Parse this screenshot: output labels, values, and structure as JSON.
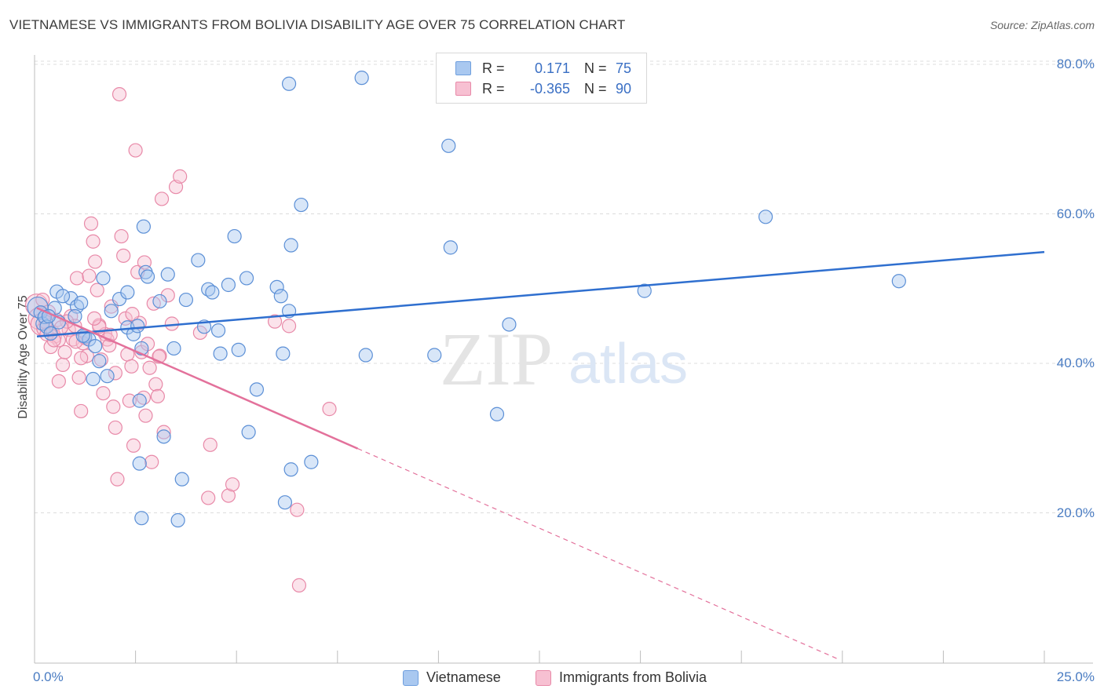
{
  "title": "VIETNAMESE VS IMMIGRANTS FROM BOLIVIA DISABILITY AGE OVER 75 CORRELATION CHART",
  "source": "Source: ZipAtlas.com",
  "watermark": {
    "zip": "ZIP",
    "atlas": "atlas"
  },
  "legend": {
    "rows": [
      {
        "r_label": "R =",
        "r_value": "0.171",
        "n_label": "N =",
        "n_value": "75",
        "color": "#a9c8f0",
        "border": "#6f9fde"
      },
      {
        "r_label": "R =",
        "r_value": "-0.365",
        "n_label": "N =",
        "n_value": "90",
        "color": "#f7c0d2",
        "border": "#e889a8"
      }
    ]
  },
  "bottom_legend": [
    "Vietnamese",
    "Immigrants from Bolivia"
  ],
  "colors": {
    "blue_fill": "#a9c8f0",
    "blue_stroke": "#5b8fd6",
    "blue_line": "#2f6fcf",
    "pink_fill": "#f7c0d2",
    "pink_stroke": "#e889a8",
    "pink_line": "#e3719b"
  },
  "chart_data": {
    "type": "scatter",
    "title": "VIETNAMESE VS IMMIGRANTS FROM BOLIVIA DISABILITY AGE OVER 75 CORRELATION CHART",
    "xlabel": "",
    "ylabel": "Disability Age Over 75",
    "xlim": [
      0,
      25
    ],
    "ylim": [
      0,
      84
    ],
    "x_tick_labels": [
      "0.0%",
      "25.0%"
    ],
    "y_ticks": [
      20,
      40,
      60,
      80
    ],
    "y_tick_labels": [
      "20.0%",
      "40.0%",
      "60.0%",
      "80.0%"
    ],
    "grid": "horizontal dashed",
    "legend_position": "top-center",
    "series": [
      {
        "name": "Vietnamese",
        "r": 0.171,
        "n": 75,
        "trend": {
          "x": [
            0,
            25
          ],
          "y": [
            43.6,
            54.9
          ]
        },
        "points": [
          [
            0.08,
            47.5
          ],
          [
            0.15,
            46.8
          ],
          [
            0.2,
            45.3
          ],
          [
            0.25,
            46.2
          ],
          [
            0.3,
            44.9
          ],
          [
            0.4,
            44.0
          ],
          [
            0.5,
            47.4
          ],
          [
            0.6,
            45.5
          ],
          [
            0.55,
            49.6
          ],
          [
            0.9,
            48.7
          ],
          [
            1.05,
            47.6
          ],
          [
            1.15,
            48.1
          ],
          [
            1.25,
            43.6
          ],
          [
            1.35,
            43.2
          ],
          [
            1.5,
            42.3
          ],
          [
            1.6,
            40.3
          ],
          [
            1.45,
            37.9
          ],
          [
            1.8,
            38.3
          ],
          [
            1.9,
            47.0
          ],
          [
            2.1,
            48.6
          ],
          [
            2.3,
            44.8
          ],
          [
            2.45,
            43.9
          ],
          [
            2.55,
            45.0
          ],
          [
            2.65,
            42.0
          ],
          [
            2.7,
            58.3
          ],
          [
            2.75,
            52.2
          ],
          [
            2.8,
            51.6
          ],
          [
            2.6,
            35.0
          ],
          [
            3.1,
            48.3
          ],
          [
            3.3,
            51.9
          ],
          [
            3.45,
            42.0
          ],
          [
            3.65,
            24.5
          ],
          [
            3.75,
            48.5
          ],
          [
            4.05,
            53.8
          ],
          [
            4.2,
            44.9
          ],
          [
            4.3,
            49.9
          ],
          [
            4.4,
            49.5
          ],
          [
            4.55,
            44.4
          ],
          [
            4.6,
            41.3
          ],
          [
            4.8,
            50.5
          ],
          [
            4.95,
            57.0
          ],
          [
            5.05,
            41.8
          ],
          [
            5.25,
            51.4
          ],
          [
            5.3,
            30.8
          ],
          [
            5.5,
            36.5
          ],
          [
            6.0,
            50.2
          ],
          [
            6.1,
            49.0
          ],
          [
            6.15,
            41.3
          ],
          [
            6.3,
            47.0
          ],
          [
            6.35,
            55.8
          ],
          [
            6.6,
            61.2
          ],
          [
            6.85,
            26.8
          ],
          [
            6.3,
            77.4
          ],
          [
            8.1,
            78.2
          ],
          [
            8.2,
            41.1
          ],
          [
            9.9,
            41.1
          ],
          [
            10.25,
            69.1
          ],
          [
            10.3,
            55.5
          ],
          [
            11.45,
            33.2
          ],
          [
            11.75,
            45.2
          ],
          [
            15.1,
            49.7
          ],
          [
            18.1,
            59.6
          ],
          [
            21.4,
            51.0
          ],
          [
            3.2,
            30.2
          ],
          [
            2.6,
            26.6
          ],
          [
            3.55,
            19.0
          ],
          [
            6.35,
            25.8
          ],
          [
            6.2,
            21.4
          ],
          [
            2.65,
            19.3
          ],
          [
            0.7,
            49.0
          ],
          [
            1.0,
            46.3
          ],
          [
            1.7,
            51.4
          ],
          [
            2.3,
            49.5
          ],
          [
            1.2,
            43.7
          ],
          [
            0.35,
            46.3
          ]
        ]
      },
      {
        "name": "Immigrants from Bolivia",
        "r": -0.365,
        "n": 90,
        "trend": {
          "x": [
            0,
            8
          ],
          "y": [
            47.4,
            28.6
          ],
          "dashed_to": [
            25,
            0
          ]
        },
        "points": [
          [
            0.05,
            47.8
          ],
          [
            0.12,
            46.0
          ],
          [
            0.18,
            45.2
          ],
          [
            0.22,
            44.6
          ],
          [
            0.3,
            43.9
          ],
          [
            0.35,
            46.9
          ],
          [
            0.45,
            44.2
          ],
          [
            0.5,
            43.6
          ],
          [
            0.55,
            45.8
          ],
          [
            0.6,
            43.1
          ],
          [
            0.7,
            39.8
          ],
          [
            0.75,
            41.5
          ],
          [
            0.6,
            37.6
          ],
          [
            0.85,
            44.5
          ],
          [
            0.9,
            46.3
          ],
          [
            0.95,
            43.2
          ],
          [
            1.0,
            45.0
          ],
          [
            1.05,
            51.4
          ],
          [
            1.1,
            38.1
          ],
          [
            1.15,
            33.6
          ],
          [
            1.2,
            42.7
          ],
          [
            1.25,
            43.4
          ],
          [
            1.3,
            41.0
          ],
          [
            1.35,
            51.7
          ],
          [
            1.4,
            58.7
          ],
          [
            1.45,
            56.3
          ],
          [
            1.5,
            53.6
          ],
          [
            1.55,
            49.8
          ],
          [
            1.6,
            45.1
          ],
          [
            1.65,
            40.5
          ],
          [
            1.7,
            36.0
          ],
          [
            1.75,
            43.9
          ],
          [
            1.8,
            43.2
          ],
          [
            1.85,
            42.4
          ],
          [
            1.9,
            47.6
          ],
          [
            1.95,
            34.2
          ],
          [
            2.0,
            31.4
          ],
          [
            2.05,
            24.5
          ],
          [
            2.1,
            76.0
          ],
          [
            2.15,
            57.0
          ],
          [
            2.2,
            54.4
          ],
          [
            2.25,
            46.0
          ],
          [
            2.3,
            41.2
          ],
          [
            2.35,
            35.0
          ],
          [
            2.4,
            39.6
          ],
          [
            2.45,
            29.0
          ],
          [
            2.5,
            68.5
          ],
          [
            2.55,
            52.2
          ],
          [
            2.6,
            45.4
          ],
          [
            2.65,
            41.5
          ],
          [
            2.7,
            35.4
          ],
          [
            2.75,
            33.0
          ],
          [
            2.8,
            42.6
          ],
          [
            2.85,
            39.4
          ],
          [
            2.9,
            26.8
          ],
          [
            2.95,
            48.0
          ],
          [
            3.0,
            37.2
          ],
          [
            3.05,
            35.6
          ],
          [
            3.1,
            41.0
          ],
          [
            3.15,
            62.0
          ],
          [
            3.2,
            30.8
          ],
          [
            3.3,
            49.1
          ],
          [
            3.4,
            45.3
          ],
          [
            3.5,
            63.6
          ],
          [
            3.6,
            65.0
          ],
          [
            4.1,
            44.1
          ],
          [
            4.3,
            22.0
          ],
          [
            4.35,
            29.1
          ],
          [
            4.8,
            22.3
          ],
          [
            4.9,
            23.8
          ],
          [
            5.95,
            45.6
          ],
          [
            6.3,
            45.0
          ],
          [
            6.5,
            20.4
          ],
          [
            6.55,
            10.3
          ],
          [
            7.3,
            33.9
          ],
          [
            0.4,
            42.2
          ],
          [
            0.8,
            45.6
          ],
          [
            1.15,
            40.7
          ],
          [
            2.0,
            38.7
          ],
          [
            1.6,
            44.9
          ],
          [
            0.2,
            48.5
          ],
          [
            0.28,
            45.5
          ],
          [
            0.66,
            44.8
          ],
          [
            1.02,
            42.9
          ],
          [
            1.48,
            46.0
          ],
          [
            2.72,
            53.5
          ],
          [
            3.08,
            40.9
          ],
          [
            0.48,
            43.1
          ],
          [
            1.88,
            43.8
          ],
          [
            2.42,
            46.6
          ]
        ]
      }
    ]
  }
}
